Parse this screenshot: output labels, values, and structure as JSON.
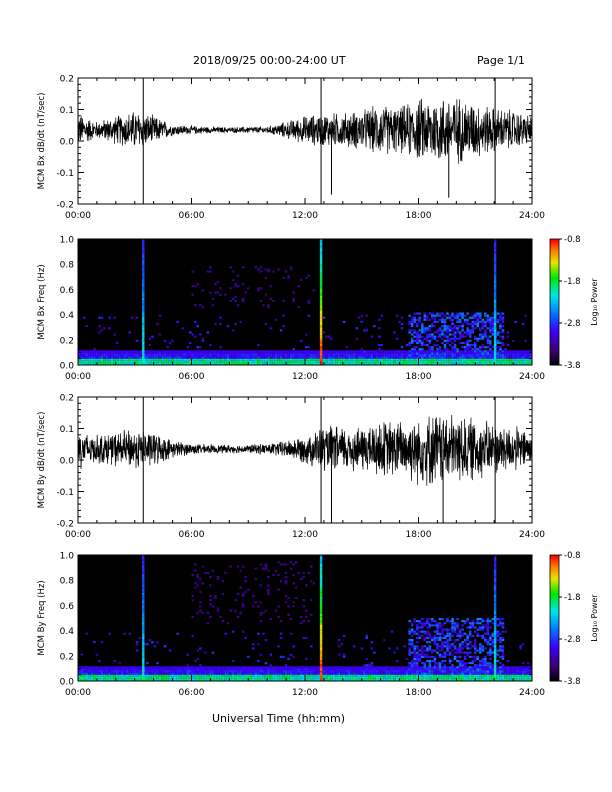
{
  "header": {
    "title": "2018/09/25  00:00-24:00 UT",
    "page": "Page 1/1"
  },
  "xlabel": "Universal Time (hh:mm)",
  "colorbar": {
    "ticks": [
      "-0.8",
      "-1.8",
      "-2.8",
      "-3.8"
    ],
    "label": "Log₁₀ Power"
  },
  "chart_data": [
    {
      "type": "line",
      "name": "bx-dbdt",
      "ylabel": "MCM Bx dB/dt (nT/sec)",
      "ylim": [
        -0.2,
        0.2
      ],
      "yticks": [
        "0.2",
        "0.1",
        "0.0",
        "-0.1",
        "-0.2"
      ],
      "xlim": [
        0,
        24
      ],
      "xticks": [
        "00:00",
        "06:00",
        "12:00",
        "18:00",
        "24:00"
      ],
      "baseline": 0.035,
      "envelope_hours": [
        0,
        1,
        2,
        3,
        4,
        5,
        6,
        7,
        8,
        9,
        10,
        11,
        12,
        13,
        14,
        15,
        16,
        17,
        18,
        19,
        20,
        21,
        22,
        23,
        24
      ],
      "envelope_amplitude": [
        0.06,
        0.03,
        0.05,
        0.07,
        0.05,
        0.02,
        0.015,
        0.012,
        0.01,
        0.012,
        0.012,
        0.03,
        0.05,
        0.06,
        0.06,
        0.07,
        0.09,
        0.08,
        0.11,
        0.12,
        0.12,
        0.1,
        0.08,
        0.07,
        0.05
      ],
      "spikes": [
        {
          "x": 3.45,
          "y": -0.2
        },
        {
          "x": 3.45,
          "y": 0.2
        },
        {
          "x": 12.85,
          "y": 0.2
        },
        {
          "x": 12.85,
          "y": -0.2
        },
        {
          "x": 22.05,
          "y": -0.2
        },
        {
          "x": 22.05,
          "y": 0.2
        },
        {
          "x": 13.4,
          "y": -0.17
        },
        {
          "x": 19.6,
          "y": -0.18
        }
      ]
    },
    {
      "type": "heatmap",
      "name": "bx-spectrogram",
      "ylabel": "MCM Bx Freq (Hz)",
      "ylim": [
        0,
        1.0
      ],
      "yticks": [
        "1.0",
        "0.8",
        "0.6",
        "0.4",
        "0.2",
        "0.0"
      ],
      "xlim": [
        0,
        24
      ],
      "xticks": [
        "00:00",
        "06:00",
        "12:00",
        "18:00",
        "24:00"
      ],
      "zlim": [
        -3.8,
        -0.8
      ],
      "bright_columns": [
        3.45,
        12.85,
        22.05
      ],
      "broadband_patch": {
        "x": [
          17.5,
          22.5
        ],
        "y": [
          0.05,
          0.42
        ]
      },
      "faint_patch": {
        "x": [
          6.0,
          12.5
        ],
        "y": [
          0.45,
          0.78
        ]
      }
    },
    {
      "type": "line",
      "name": "by-dbdt",
      "ylabel": "MCM By dB/dt (nT/sec)",
      "ylim": [
        -0.2,
        0.2
      ],
      "yticks": [
        "0.2",
        "0.1",
        "0.0",
        "-0.1",
        "-0.2"
      ],
      "xlim": [
        0,
        24
      ],
      "xticks": [
        "00:00",
        "06:00",
        "12:00",
        "18:00",
        "24:00"
      ],
      "baseline": 0.035,
      "envelope_hours": [
        0,
        1,
        2,
        3,
        4,
        5,
        6,
        7,
        8,
        9,
        10,
        11,
        12,
        13,
        14,
        15,
        16,
        17,
        18,
        19,
        20,
        21,
        22,
        23,
        24
      ],
      "envelope_amplitude": [
        0.07,
        0.05,
        0.06,
        0.07,
        0.06,
        0.03,
        0.02,
        0.015,
        0.015,
        0.015,
        0.02,
        0.03,
        0.05,
        0.08,
        0.08,
        0.08,
        0.1,
        0.1,
        0.12,
        0.13,
        0.12,
        0.11,
        0.09,
        0.08,
        0.06
      ],
      "spikes": [
        {
          "x": 3.45,
          "y": -0.2
        },
        {
          "x": 3.45,
          "y": 0.2
        },
        {
          "x": 12.85,
          "y": 0.2
        },
        {
          "x": 12.85,
          "y": -0.2
        },
        {
          "x": 22.05,
          "y": -0.2
        },
        {
          "x": 22.05,
          "y": 0.2
        },
        {
          "x": 13.4,
          "y": -0.2
        },
        {
          "x": 19.3,
          "y": -0.2
        }
      ]
    },
    {
      "type": "heatmap",
      "name": "by-spectrogram",
      "ylabel": "MCM By Freq (Hz)",
      "ylim": [
        0,
        1.0
      ],
      "yticks": [
        "1.0",
        "0.8",
        "0.6",
        "0.4",
        "0.2",
        "0.0"
      ],
      "xlim": [
        0,
        24
      ],
      "xticks": [
        "00:00",
        "06:00",
        "12:00",
        "18:00",
        "24:00"
      ],
      "zlim": [
        -3.8,
        -0.8
      ],
      "bright_columns": [
        3.45,
        12.85,
        22.05
      ],
      "broadband_patch": {
        "x": [
          17.5,
          22.5
        ],
        "y": [
          0.05,
          0.5
        ]
      },
      "faint_patch": {
        "x": [
          6.0,
          12.5
        ],
        "y": [
          0.45,
          0.95
        ]
      }
    }
  ]
}
